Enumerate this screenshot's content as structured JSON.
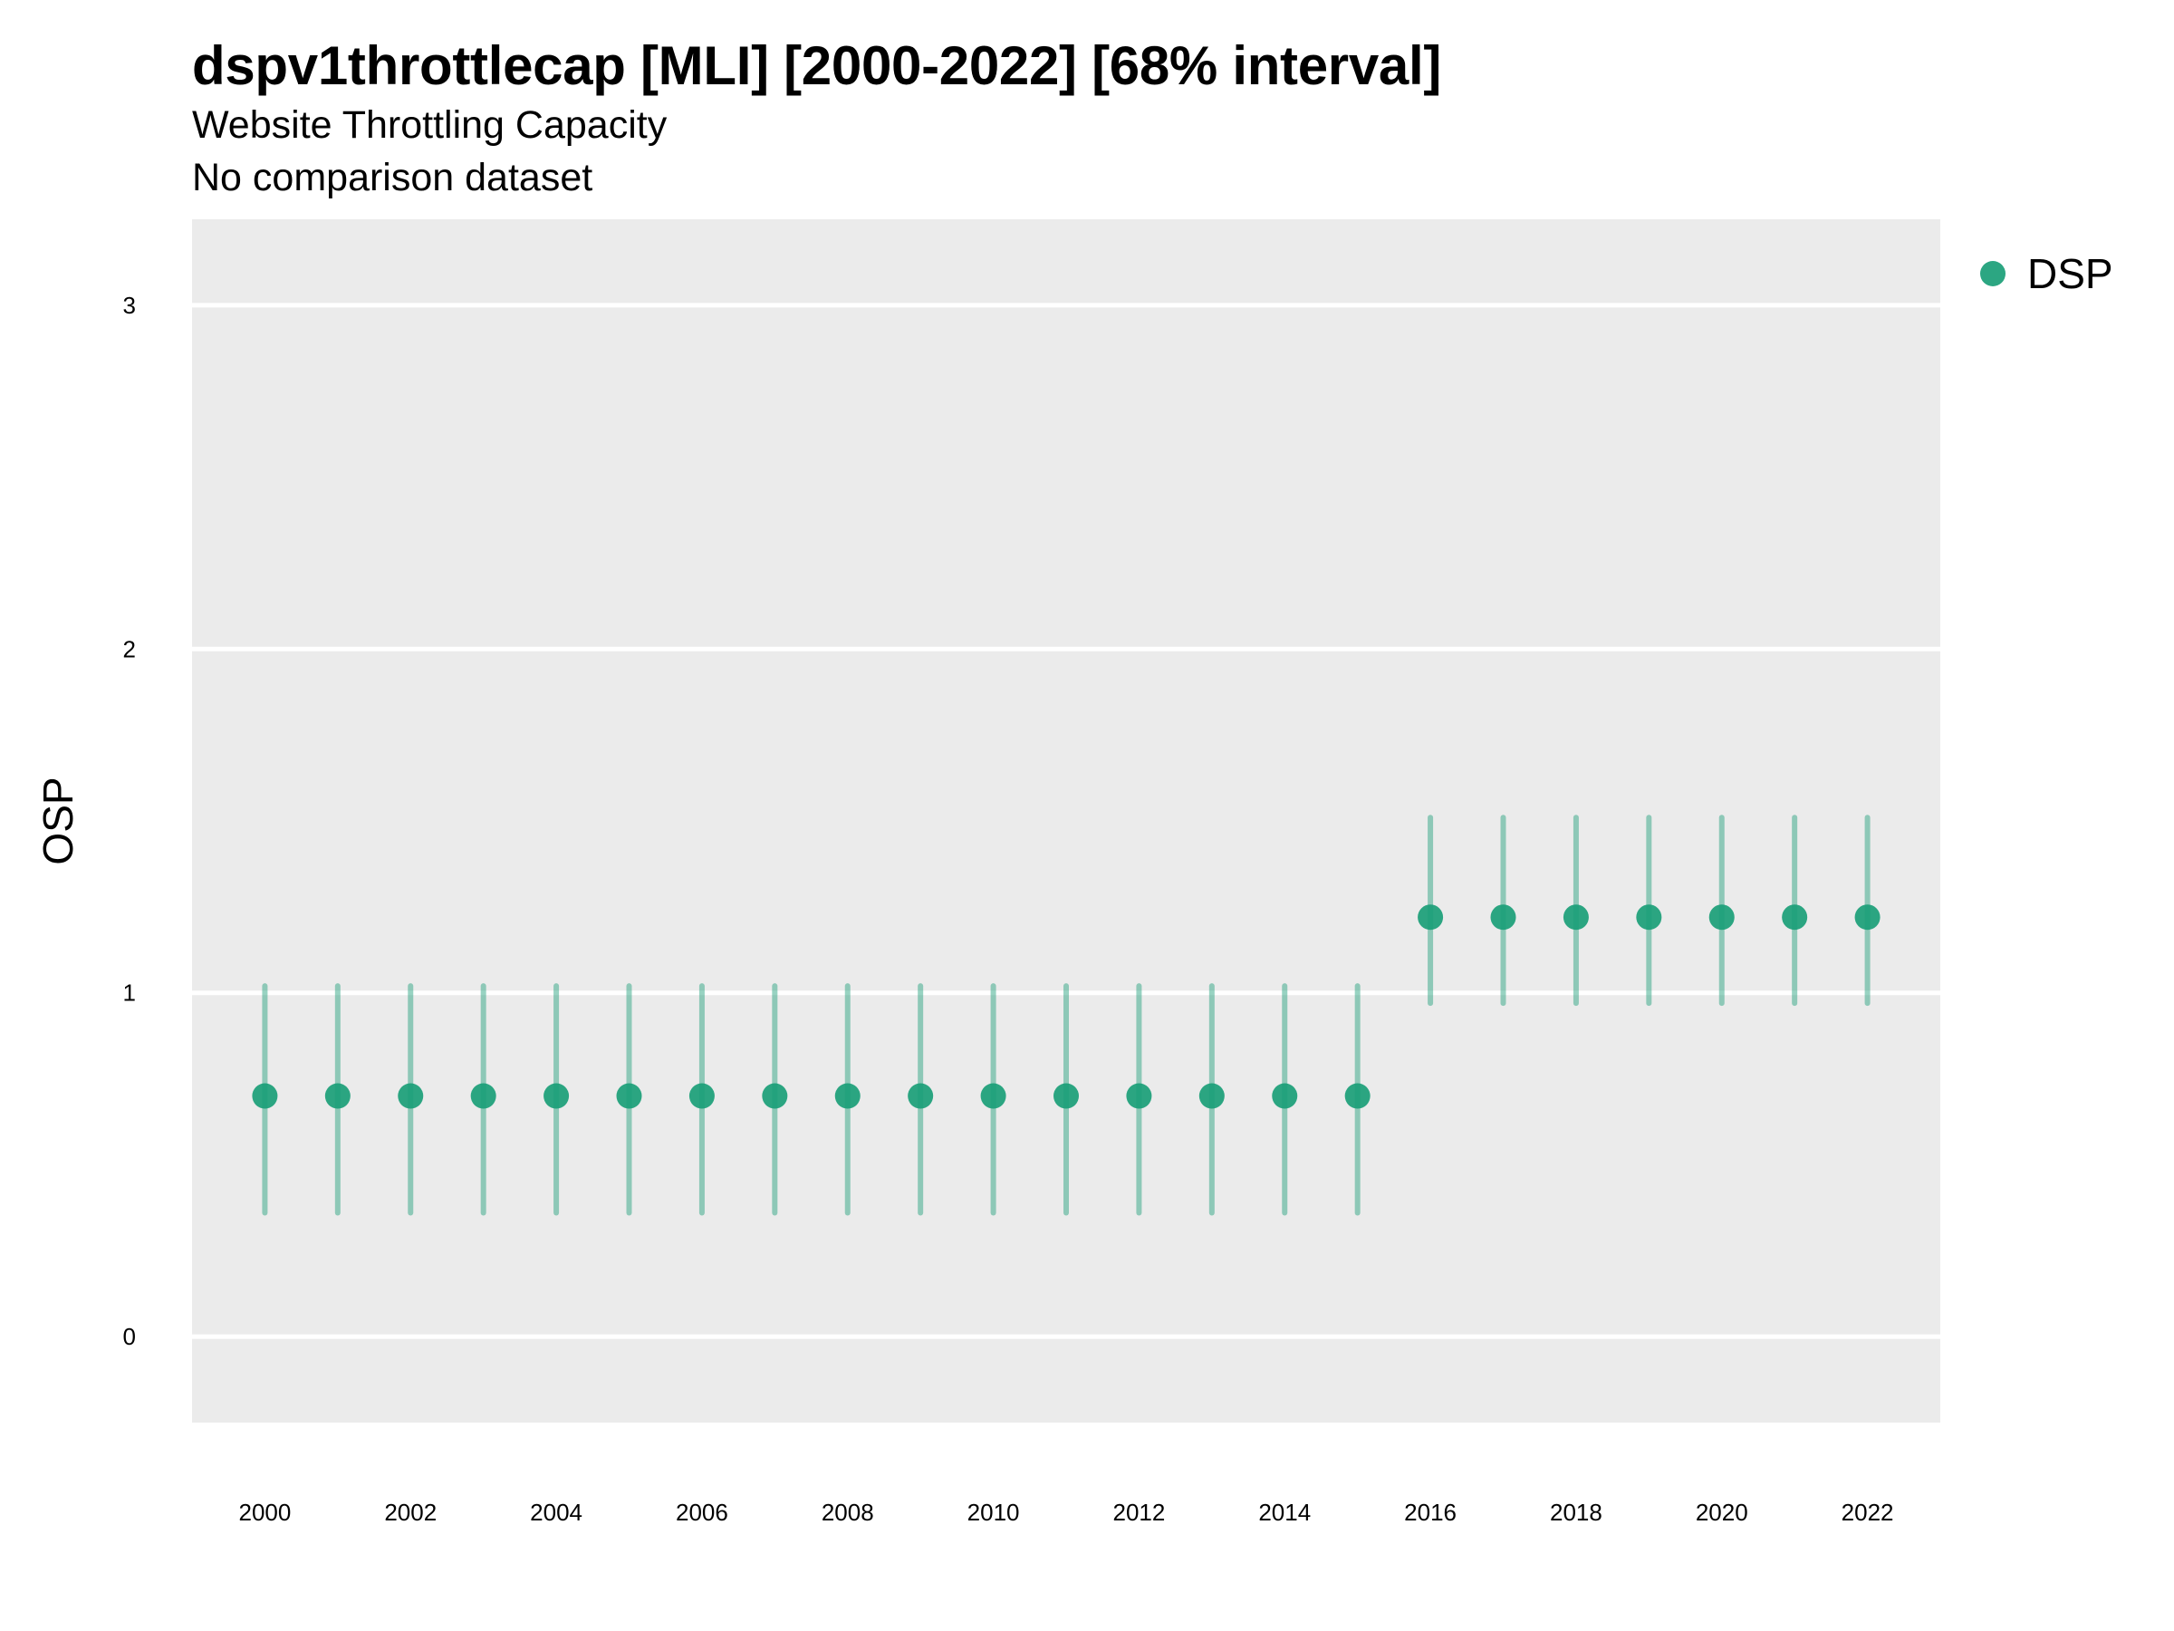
{
  "title": "dspv1throttlecap [MLI] [2000-2022] [68% interval]",
  "subtitle": "Website Throttling Capacity",
  "subtitle2": "No comparison dataset",
  "chart_data": {
    "type": "scatter",
    "title": "dspv1throttlecap [MLI] [2000-2022] [68% interval]",
    "subtitle": "Website Throttling Capacity",
    "xlabel": "",
    "ylabel": "OSP",
    "ylim": [
      -0.25,
      3.25
    ],
    "xlim": [
      1999,
      2023
    ],
    "yticks": [
      0,
      1,
      2,
      3
    ],
    "xticks": [
      2000,
      2002,
      2004,
      2006,
      2008,
      2010,
      2012,
      2014,
      2016,
      2018,
      2020,
      2022
    ],
    "grid": "horizontal major only",
    "legend_position": "right",
    "series": [
      {
        "name": "DSP",
        "color": "#1a9e77",
        "x": [
          2000,
          2001,
          2002,
          2003,
          2004,
          2005,
          2006,
          2007,
          2008,
          2009,
          2010,
          2011,
          2012,
          2013,
          2014,
          2015,
          2016,
          2017,
          2018,
          2019,
          2020,
          2021,
          2022
        ],
        "y": [
          0.7,
          0.7,
          0.7,
          0.7,
          0.7,
          0.7,
          0.7,
          0.7,
          0.7,
          0.7,
          0.7,
          0.7,
          0.7,
          0.7,
          0.7,
          0.7,
          1.22,
          1.22,
          1.22,
          1.22,
          1.22,
          1.22,
          1.22
        ],
        "lower": [
          0.36,
          0.36,
          0.36,
          0.36,
          0.36,
          0.36,
          0.36,
          0.36,
          0.36,
          0.36,
          0.36,
          0.36,
          0.36,
          0.36,
          0.36,
          0.36,
          0.97,
          0.97,
          0.97,
          0.97,
          0.97,
          0.97,
          0.97
        ],
        "upper": [
          1.02,
          1.02,
          1.02,
          1.02,
          1.02,
          1.02,
          1.02,
          1.02,
          1.02,
          1.02,
          1.02,
          1.02,
          1.02,
          1.02,
          1.02,
          1.02,
          1.51,
          1.51,
          1.51,
          1.51,
          1.51,
          1.51,
          1.51
        ]
      }
    ]
  },
  "colors": {
    "panel_background": "#ebebeb",
    "grid": "#ffffff",
    "point": "#1a9e77"
  }
}
